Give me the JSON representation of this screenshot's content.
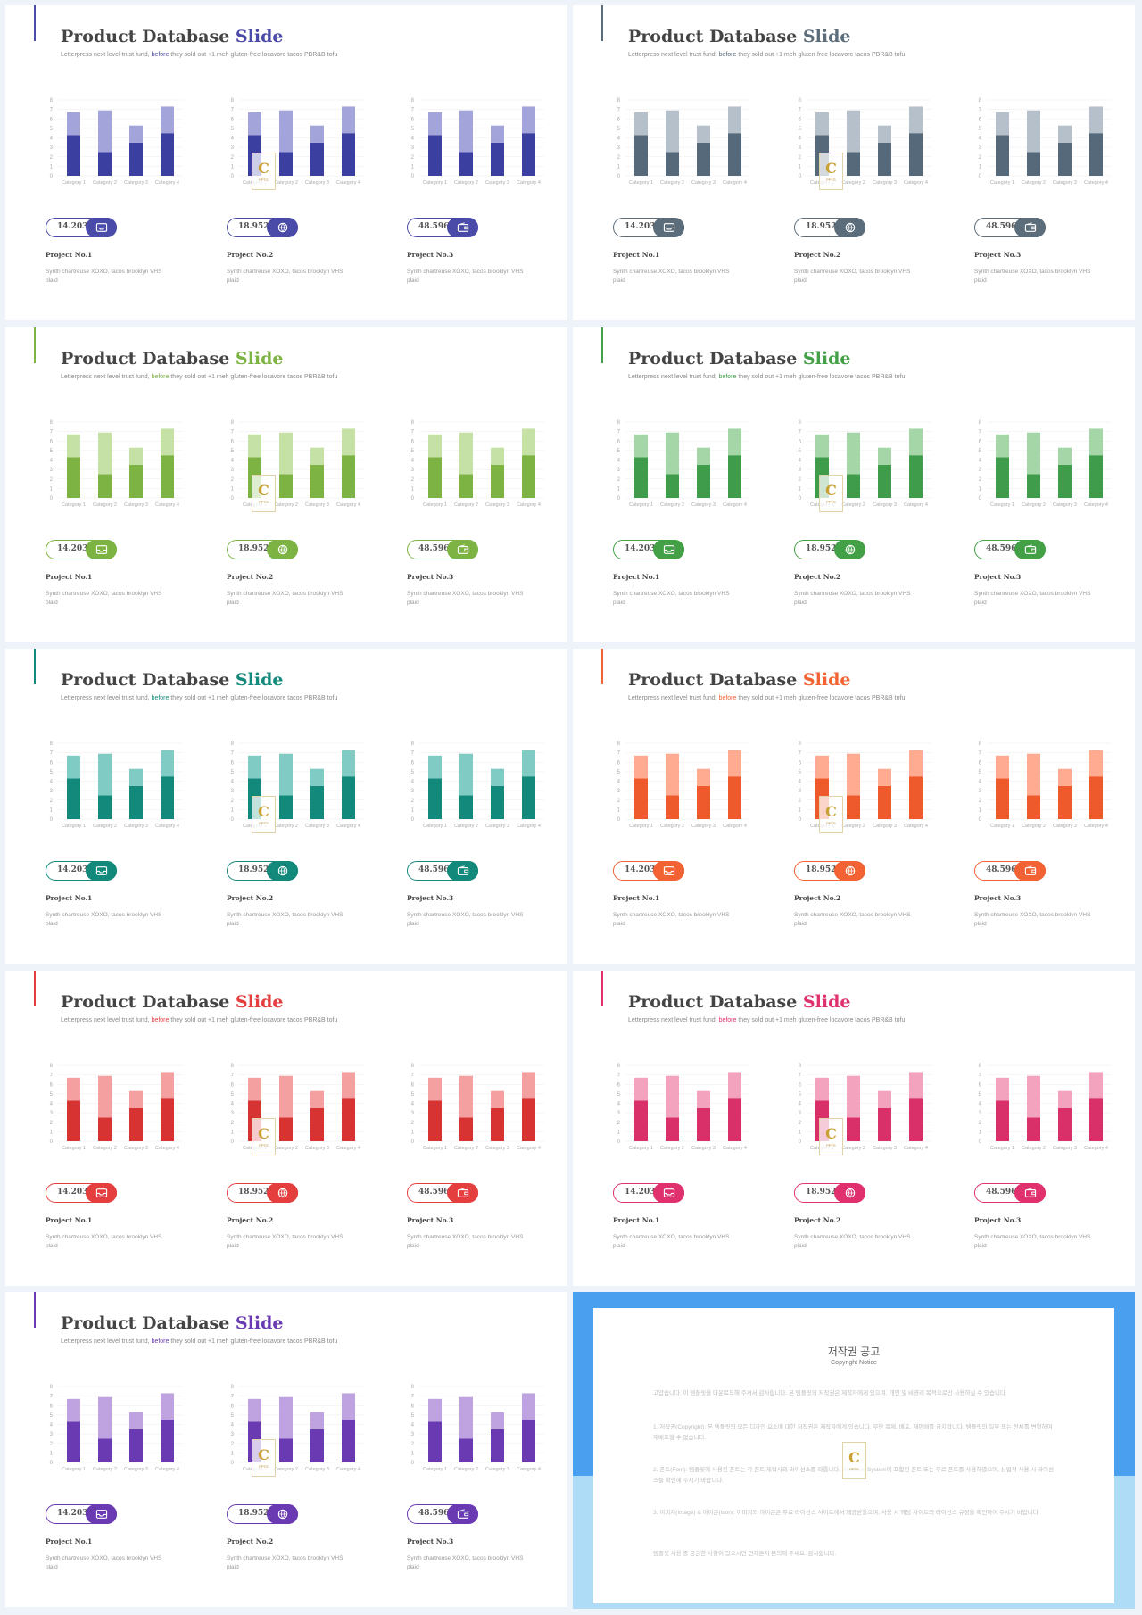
{
  "slide": {
    "title_main": "Product Database",
    "title_accent": "Slide",
    "subtitle_pre": "Letterpress next level trust fund, ",
    "subtitle_accent": "before",
    "subtitle_post": " they sold out +1 meh gluten-free locavore tacos PBR&B tofu",
    "chart_data": {
      "type": "bar",
      "categories": [
        "Category 1",
        "Category 2",
        "Category 3",
        "Category 4"
      ],
      "series": [
        {
          "values": [
            4.3,
            2.5,
            3.5,
            4.5
          ]
        },
        {
          "values": [
            2.4,
            4.4,
            1.8,
            2.8
          ]
        }
      ],
      "ylim": [
        0,
        8
      ],
      "yticks": [
        0,
        1,
        2,
        3,
        4,
        5,
        6,
        7,
        8
      ]
    },
    "projects": [
      {
        "value": "14.203",
        "icon": "inbox-icon",
        "name": "Project No.1",
        "desc": "Synth chartreuse XOXO, tacos brooklyn VHS plaid"
      },
      {
        "value": "18.952",
        "icon": "globe-icon",
        "name": "Project No.2",
        "desc": "Synth chartreuse XOXO, tacos brooklyn VHS plaid"
      },
      {
        "value": "48.596",
        "icon": "wallet-icon",
        "name": "Project No.3",
        "desc": "Synth chartreuse XOXO, tacos brooklyn VHS plaid"
      }
    ],
    "logo_letter": "C",
    "logo_word": "PPTS"
  },
  "themes": [
    {
      "name": "indigo",
      "accent": "#4a4aa8",
      "bar_dark": "#3a3fa0",
      "bar_light": "#a3a5da"
    },
    {
      "name": "slate",
      "accent": "#5b6c7a",
      "bar_dark": "#56697a",
      "bar_light": "#b6c0ca"
    },
    {
      "name": "lime",
      "accent": "#7cb342",
      "bar_dark": "#7cb342",
      "bar_light": "#c5e1a5"
    },
    {
      "name": "green",
      "accent": "#43a047",
      "bar_dark": "#3e9c4a",
      "bar_light": "#a5d6a7"
    },
    {
      "name": "teal",
      "accent": "#12897a",
      "bar_dark": "#12897a",
      "bar_light": "#80cbc4"
    },
    {
      "name": "orange",
      "accent": "#f26233",
      "bar_dark": "#ee5a2b",
      "bar_light": "#ffab91"
    },
    {
      "name": "red",
      "accent": "#e53e3e",
      "bar_dark": "#d83333",
      "bar_light": "#f5a0a0"
    },
    {
      "name": "pink",
      "accent": "#e0306e",
      "bar_dark": "#d9306a",
      "bar_light": "#f4a3bf"
    },
    {
      "name": "purple",
      "accent": "#6a3ab2",
      "bar_dark": "#6a3ab2",
      "bar_light": "#bfa3e0"
    }
  ],
  "copyright": {
    "title": "저작권 공고",
    "subtitle": "Copyright Notice",
    "paragraphs": [
      "고맙습니다. 이 템플릿을 다운로드해 주셔서 감사합니다. 본 템플릿의 저작권은 제작자에게 있으며, 개인 및 비영리 목적으로만 사용하실 수 있습니다.",
      "1. 저작권(Copyright): 본 템플릿의 모든 디자인 요소에 대한 저작권은 제작자에게 있습니다. 무단 복제, 배포, 재판매를 금지합니다. 템플릿의 일부 또는 전체를 변형하여 재배포할 수 없습니다.",
      "2. 폰트(Font): 템플릿에 사용된 폰트는 각 폰트 제작사의 라이선스를 따릅니다. Windows System에 포함된 폰트 또는 무료 폰트를 사용하였으며, 상업적 사용 시 라이선스를 확인해 주시기 바랍니다.",
      "3. 이미지(Image) & 아이콘(Icon): 이미지와 아이콘은 무료 라이선스 사이트에서 제공받았으며, 사용 시 해당 사이트의 라이선스 규정을 확인하여 주시기 바랍니다.",
      "템플릿 사용 중 궁금한 사항이 있으시면 언제든지 문의해 주세요. 감사합니다."
    ]
  }
}
